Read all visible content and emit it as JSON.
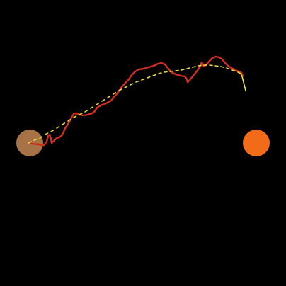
{
  "scene": {
    "background_color": "#000000",
    "start_marker": {
      "color": "#a87247"
    },
    "goal_marker": {
      "color": "#f26b18"
    },
    "path": {
      "color": "#d42e20"
    },
    "trail": {
      "color": "#f2dd33"
    }
  }
}
